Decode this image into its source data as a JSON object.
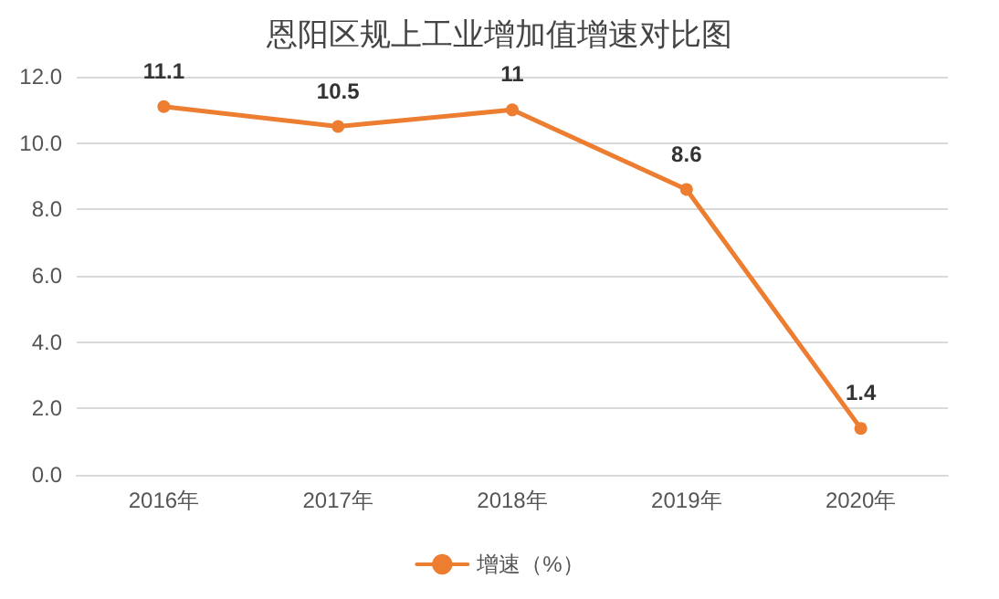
{
  "chart_data": {
    "type": "line",
    "title": "恩阳区规上工业增加值增速对比图",
    "categories": [
      "2016年",
      "2017年",
      "2018年",
      "2019年",
      "2020年"
    ],
    "series": [
      {
        "name": "增速（%）",
        "color": "#ed7d31",
        "values": [
          11.1,
          10.5,
          11,
          8.6,
          1.4
        ]
      }
    ],
    "ylim": [
      0,
      12
    ],
    "yticks": [
      {
        "value": 0,
        "label": "0.0"
      },
      {
        "value": 2,
        "label": "2.0"
      },
      {
        "value": 4,
        "label": "4.0"
      },
      {
        "value": 6,
        "label": "6.0"
      },
      {
        "value": 8,
        "label": "8.0"
      },
      {
        "value": 10,
        "label": "10.0"
      },
      {
        "value": 12,
        "label": "12.0"
      }
    ],
    "grid": "y",
    "legend": "bottom",
    "marker": "circle",
    "line_style": "solid",
    "data_labels": true
  }
}
